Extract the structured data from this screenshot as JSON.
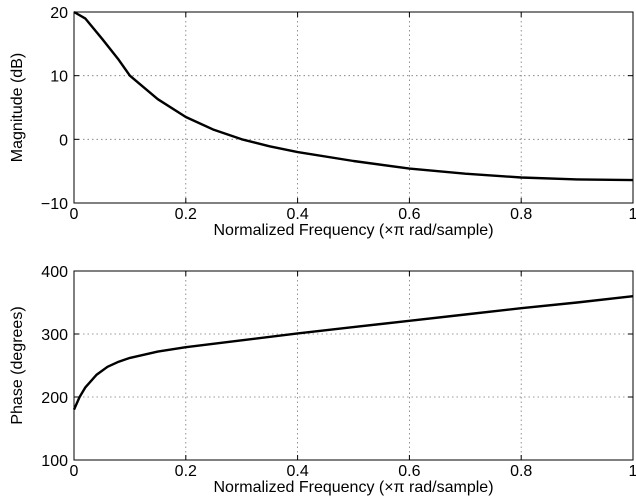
{
  "chart_data": [
    {
      "type": "line",
      "title": "",
      "xlabel": "Normalized Frequency  (×π rad/sample)",
      "ylabel": "Magnitude (dB)",
      "xlim": [
        0,
        1
      ],
      "ylim": [
        -10,
        20
      ],
      "xticks": [
        "0",
        "0.2",
        "0.4",
        "0.6",
        "0.8",
        "1"
      ],
      "yticks": [
        "−10",
        "0",
        "10",
        "20"
      ],
      "grid": true,
      "series": [
        {
          "x": [
            0,
            0.02,
            0.05,
            0.08,
            0.1,
            0.15,
            0.2,
            0.25,
            0.3,
            0.35,
            0.4,
            0.5,
            0.6,
            0.7,
            0.8,
            0.9,
            1.0
          ],
          "y": [
            20,
            19,
            15.8,
            12.5,
            10,
            6.3,
            3.5,
            1.5,
            0,
            -1.1,
            -2.0,
            -3.4,
            -4.6,
            -5.4,
            -6.0,
            -6.3,
            -6.4
          ]
        }
      ]
    },
    {
      "type": "line",
      "title": "",
      "xlabel": "Normalized Frequency  (×π rad/sample)",
      "ylabel": "Phase (degrees)",
      "xlim": [
        0,
        1
      ],
      "ylim": [
        100,
        400
      ],
      "xticks": [
        "0",
        "0.2",
        "0.4",
        "0.6",
        "0.8",
        "1"
      ],
      "yticks": [
        "100",
        "200",
        "300",
        "400"
      ],
      "grid": true,
      "series": [
        {
          "x": [
            0,
            0.01,
            0.02,
            0.04,
            0.06,
            0.08,
            0.1,
            0.15,
            0.2,
            0.3,
            0.4,
            0.5,
            0.6,
            0.7,
            0.8,
            0.9,
            1.0
          ],
          "y": [
            180,
            200,
            215,
            235,
            248,
            256,
            262,
            272,
            279,
            290,
            301,
            311,
            321,
            331,
            341,
            350,
            360
          ]
        }
      ]
    }
  ]
}
